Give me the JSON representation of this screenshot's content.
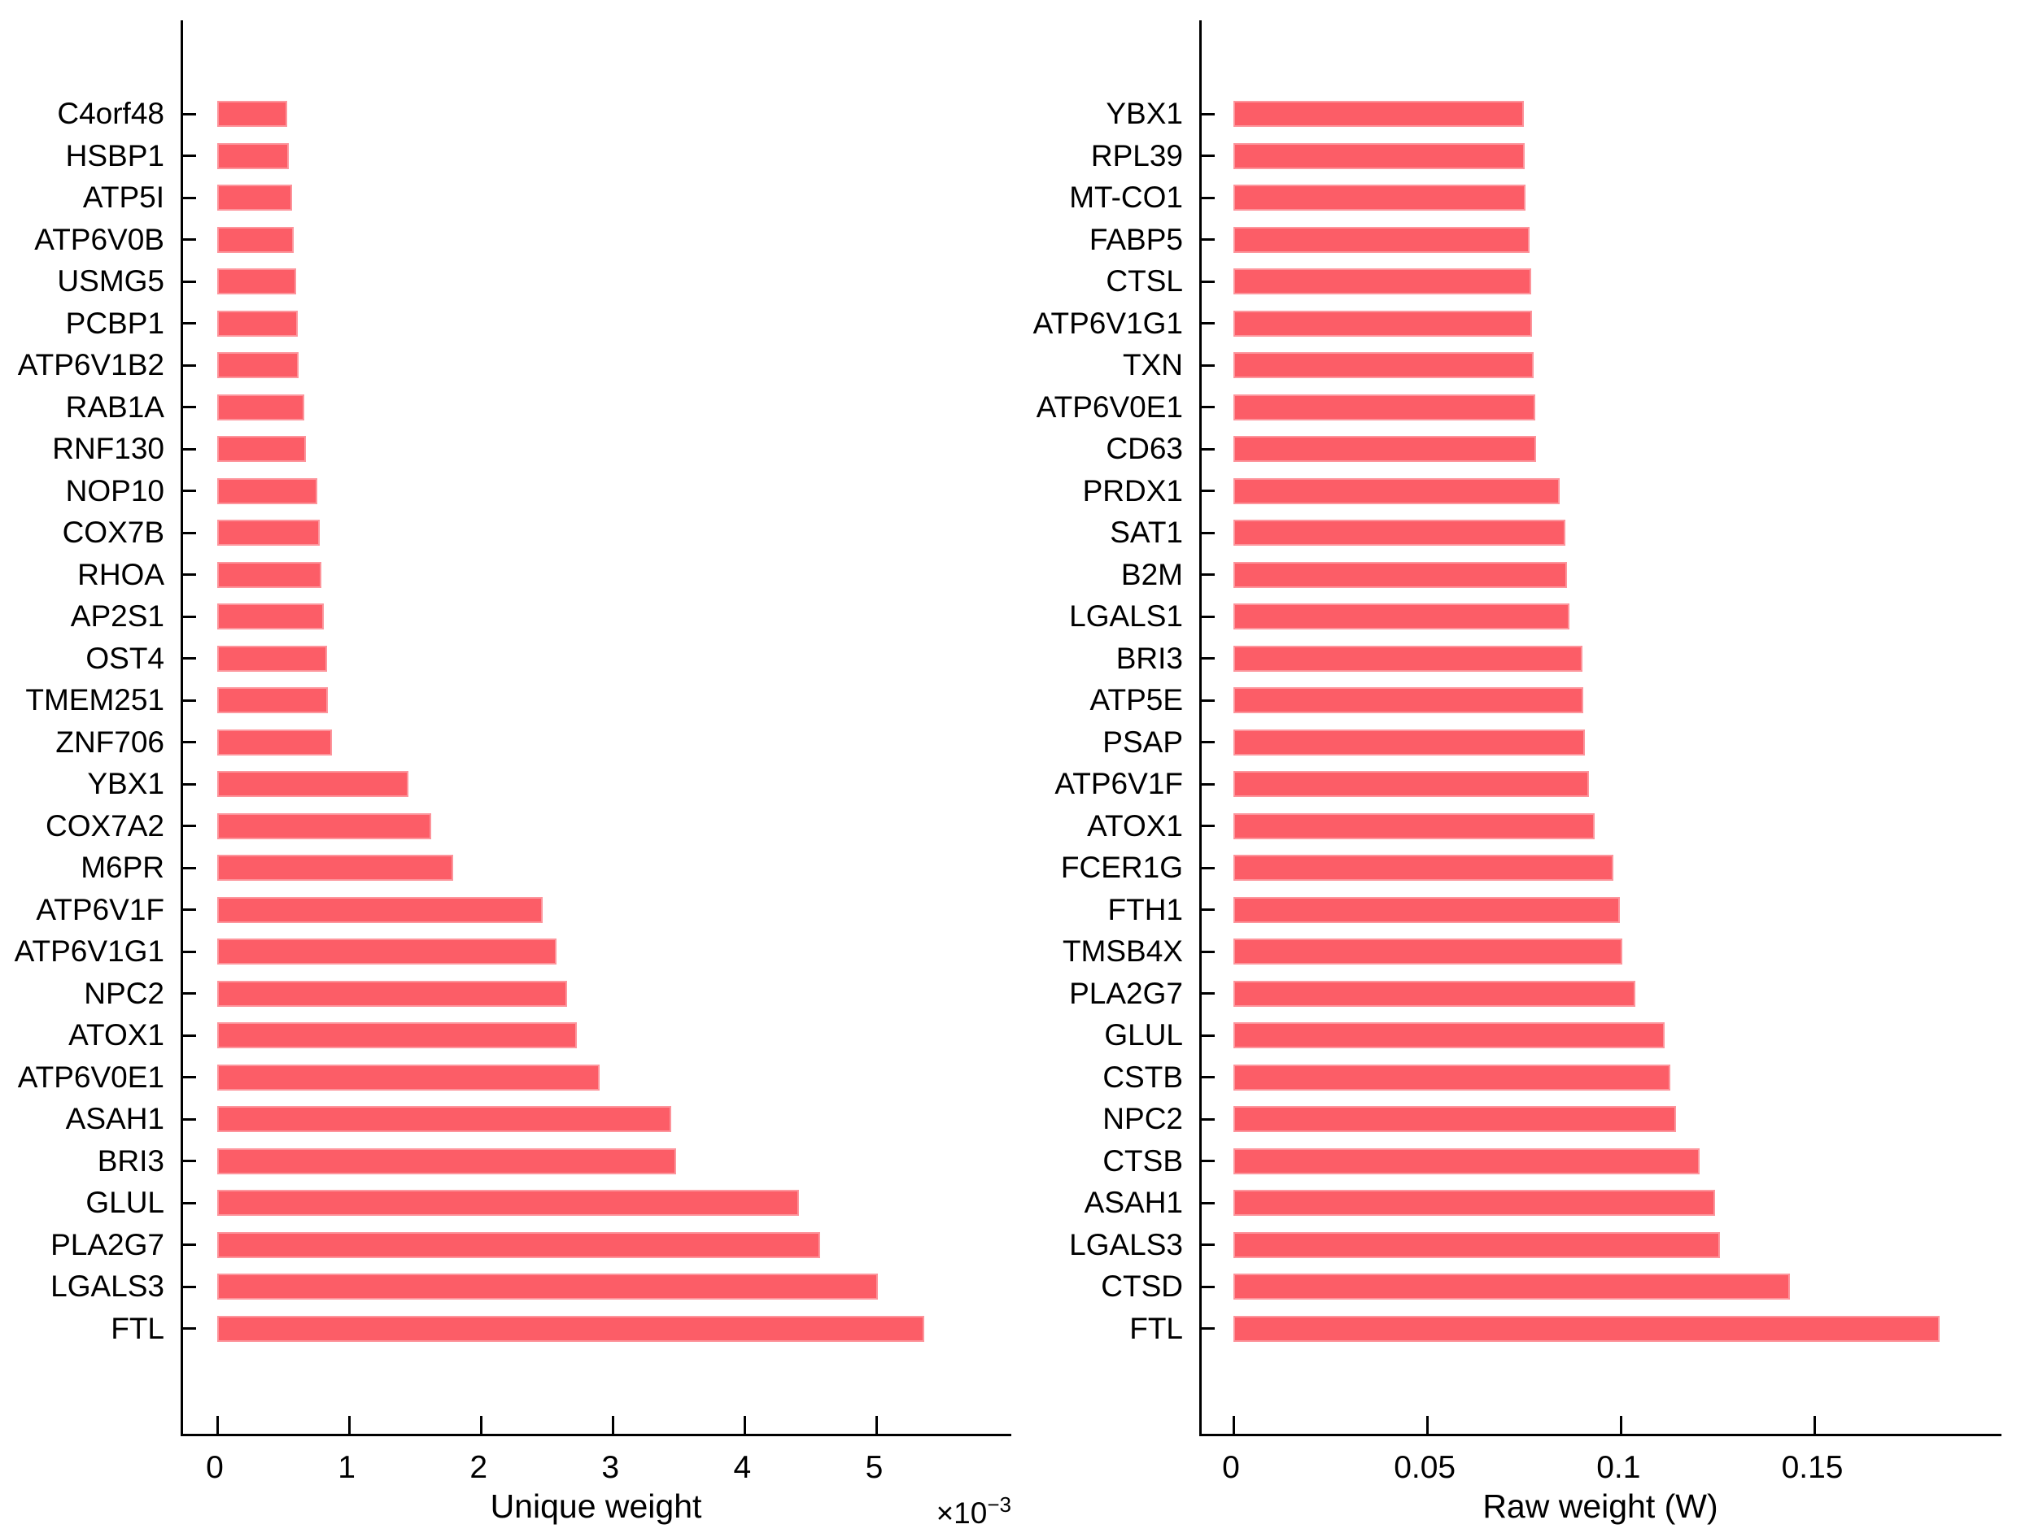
{
  "figure": {
    "background": "#FFFFFF",
    "bar_color": "#FC5D67",
    "axis_color": "#000000",
    "text_color": "#000000"
  },
  "chart_data": [
    {
      "type": "bar",
      "orientation": "horizontal",
      "title": "",
      "xlabel": "Unique weight",
      "ylabel": "",
      "x_multiplier_base": "×10",
      "x_multiplier_exp": "−3",
      "grid": false,
      "legend": false,
      "xlim": [
        0,
        0.00604
      ],
      "xmax": 0.00604,
      "tick_values": [
        0,
        0.001,
        0.002,
        0.003,
        0.004,
        0.005
      ],
      "tick_labels": [
        "0",
        "1",
        "2",
        "3",
        "4",
        "5"
      ],
      "categories": [
        "C4orf48",
        "HSBP1",
        "ATP5I",
        "ATP6V0B",
        "USMG5",
        "PCBP1",
        "ATP6V1B2",
        "RAB1A",
        "RNF130",
        "NOP10",
        "COX7B",
        "RHOA",
        "AP2S1",
        "OST4",
        "TMEM251",
        "ZNF706",
        "YBX1",
        "COX7A2",
        "M6PR",
        "ATP6V1F",
        "ATP6V1G1",
        "NPC2",
        "ATOX1",
        "ATP6V0E1",
        "ASAH1",
        "BRI3",
        "GLUL",
        "PLA2G7",
        "LGALS3",
        "FTL"
      ],
      "values": [
        0.00053,
        0.00054,
        0.00057,
        0.00058,
        0.0006,
        0.00061,
        0.00062,
        0.00066,
        0.00067,
        0.00076,
        0.00078,
        0.00079,
        0.00081,
        0.00083,
        0.00084,
        0.00087,
        0.00145,
        0.00162,
        0.00179,
        0.00247,
        0.00257,
        0.00265,
        0.00273,
        0.0029,
        0.00344,
        0.00348,
        0.00441,
        0.00457,
        0.00501,
        0.00536
      ]
    },
    {
      "type": "bar",
      "orientation": "horizontal",
      "title": "",
      "xlabel": "Raw weight (W)",
      "ylabel": "",
      "x_multiplier_base": "",
      "x_multiplier_exp": "",
      "grid": false,
      "legend": false,
      "xlim": [
        0,
        0.1988
      ],
      "xmax": 0.1988,
      "tick_values": [
        0,
        0.05,
        0.1,
        0.15
      ],
      "tick_labels": [
        "0",
        "0.05",
        "0.1",
        "0.15"
      ],
      "categories": [
        "YBX1",
        "RPL39",
        "MT-CO1",
        "FABP5",
        "CTSL",
        "ATP6V1G1",
        "TXN",
        "ATP6V0E1",
        "CD63",
        "PRDX1",
        "SAT1",
        "B2M",
        "LGALS1",
        "BRI3",
        "ATP5E",
        "PSAP",
        "ATP6V1F",
        "ATOX1",
        "FCER1G",
        "FTH1",
        "TMSB4X",
        "PLA2G7",
        "GLUL",
        "CSTB",
        "NPC2",
        "CTSB",
        "ASAH1",
        "LGALS3",
        "CTSD",
        "FTL"
      ],
      "values": [
        0.0749,
        0.0752,
        0.0753,
        0.0765,
        0.0769,
        0.0771,
        0.0774,
        0.0779,
        0.0781,
        0.0841,
        0.0857,
        0.0861,
        0.0866,
        0.0901,
        0.0902,
        0.0906,
        0.0918,
        0.0932,
        0.0981,
        0.0997,
        0.1003,
        0.1038,
        0.1112,
        0.1128,
        0.1143,
        0.1203,
        0.1243,
        0.1255,
        0.1436,
        0.1823
      ]
    }
  ]
}
